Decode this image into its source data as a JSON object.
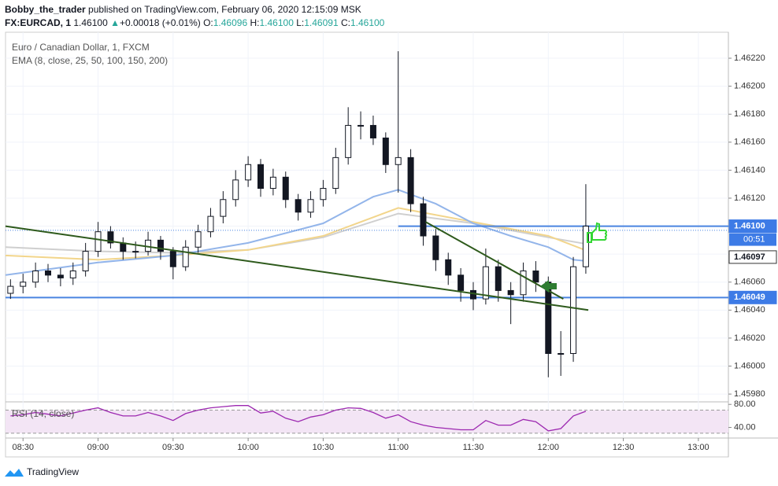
{
  "header": {
    "author": "Bobby_the_trader",
    "published": "published on TradingView.com, February 06, 2020 12:15:09 MSK",
    "symbol": "FX:EURCAD, 1",
    "last": "1.46100",
    "change": "+0.00018 (+0.01%)",
    "o_label": "O:",
    "o": "1.46096",
    "h_label": "H:",
    "h": "1.46100",
    "l_label": "L:",
    "l": "1.46091",
    "c_label": "C:",
    "c": "1.46100",
    "legend_title": "Euro / Canadian Dollar, 1, FXCM",
    "legend_ema": "EMA (8, close, 25, 50, 100, 150, 200)"
  },
  "footer": {
    "brand": "TradingView"
  },
  "chart_data": [
    {
      "type": "candlestick",
      "x": [
        "08:25",
        "08:30",
        "08:35",
        "08:40",
        "08:45",
        "08:50",
        "08:55",
        "09:00",
        "09:05",
        "09:10",
        "09:15",
        "09:20",
        "09:25",
        "09:30",
        "09:35",
        "09:40",
        "09:45",
        "09:50",
        "09:55",
        "10:00",
        "10:05",
        "10:10",
        "10:15",
        "10:20",
        "10:25",
        "10:30",
        "10:35",
        "10:40",
        "10:45",
        "10:50",
        "10:55",
        "11:00",
        "11:05",
        "11:10",
        "11:15",
        "11:20",
        "11:25",
        "11:30",
        "11:35",
        "11:40",
        "11:45",
        "11:50",
        "11:55",
        "12:00",
        "12:05",
        "12:10",
        "12:15"
      ],
      "open": [
        1.46052,
        1.46057,
        1.4606,
        1.46068,
        1.46065,
        1.46063,
        1.46068,
        1.46082,
        1.46096,
        1.46088,
        1.46082,
        1.46082,
        1.4609,
        1.46082,
        1.46071,
        1.46085,
        1.46096,
        1.46107,
        1.46119,
        1.46133,
        1.46144,
        1.46127,
        1.46135,
        1.46119,
        1.4611,
        1.46119,
        1.46127,
        1.46149,
        1.46172,
        1.46172,
        1.46163,
        1.46144,
        1.46149,
        1.46116,
        1.46093,
        1.46076,
        1.46065,
        1.46054,
        1.46048,
        1.46071,
        1.46054,
        1.46051,
        1.46068,
        1.4606,
        1.46009,
        1.46009,
        1.46071
      ],
      "high": [
        1.46062,
        1.46066,
        1.46074,
        1.46073,
        1.4607,
        1.46074,
        1.46088,
        1.46103,
        1.461,
        1.46092,
        1.46089,
        1.46096,
        1.46093,
        1.46085,
        1.4609,
        1.46101,
        1.46113,
        1.46125,
        1.4614,
        1.4615,
        1.46148,
        1.46141,
        1.46139,
        1.46123,
        1.46125,
        1.46133,
        1.46156,
        1.46185,
        1.46182,
        1.46179,
        1.46167,
        1.46225,
        1.46155,
        1.46121,
        1.46098,
        1.46081,
        1.4607,
        1.4606,
        1.46084,
        1.46076,
        1.4606,
        1.46074,
        1.46075,
        1.46064,
        1.46025,
        1.46078,
        1.4613
      ],
      "low": [
        1.46048,
        1.46052,
        1.46056,
        1.4606,
        1.46057,
        1.46058,
        1.46064,
        1.46078,
        1.46084,
        1.46076,
        1.46077,
        1.46079,
        1.46076,
        1.46062,
        1.46068,
        1.46081,
        1.46092,
        1.46102,
        1.46114,
        1.46128,
        1.46121,
        1.46122,
        1.46113,
        1.46104,
        1.46106,
        1.46114,
        1.46123,
        1.46144,
        1.46162,
        1.46158,
        1.46138,
        1.46124,
        1.4611,
        1.46086,
        1.46068,
        1.46058,
        1.46046,
        1.4604,
        1.46044,
        1.46046,
        1.4603,
        1.46046,
        1.46053,
        1.45992,
        1.45993,
        1.46003,
        1.46066
      ],
      "close": [
        1.46057,
        1.4606,
        1.46068,
        1.46065,
        1.46063,
        1.46068,
        1.46082,
        1.46096,
        1.46088,
        1.46082,
        1.46082,
        1.4609,
        1.46082,
        1.46071,
        1.46085,
        1.46096,
        1.46107,
        1.46119,
        1.46133,
        1.46144,
        1.46127,
        1.46135,
        1.46119,
        1.4611,
        1.46119,
        1.46127,
        1.46149,
        1.46172,
        1.46172,
        1.46163,
        1.46144,
        1.46149,
        1.46116,
        1.46093,
        1.46076,
        1.46065,
        1.46054,
        1.46048,
        1.46071,
        1.46054,
        1.46051,
        1.46068,
        1.4606,
        1.46009,
        1.46009,
        1.46071,
        1.461
      ],
      "up_color": "#ffffff",
      "down_color": "#131722",
      "wick_color": "#131722",
      "ema": [
        {
          "color": "#cfcfcf",
          "x": [
            "08:23",
            "09:00",
            "09:30",
            "10:00",
            "10:30",
            "11:00",
            "11:30",
            "12:00",
            "12:16"
          ],
          "values": [
            1.46085,
            1.46082,
            1.46081,
            1.46083,
            1.46092,
            1.46109,
            1.46102,
            1.46092,
            1.46087
          ]
        },
        {
          "color": "#f2d58b",
          "x": [
            "08:23",
            "09:00",
            "09:30",
            "10:00",
            "10:30",
            "11:00",
            "11:30",
            "12:00",
            "12:16"
          ],
          "values": [
            1.46079,
            1.46076,
            1.46079,
            1.46083,
            1.46093,
            1.46113,
            1.46103,
            1.46093,
            1.46082
          ]
        },
        {
          "color": "#93b5ea",
          "x": [
            "08:23",
            "09:00",
            "09:30",
            "10:00",
            "10:30",
            "10:50",
            "11:00",
            "11:15",
            "11:30",
            "11:45",
            "12:00",
            "12:10",
            "12:16"
          ],
          "values": [
            1.46065,
            1.46074,
            1.46079,
            1.46088,
            1.46102,
            1.46121,
            1.46126,
            1.46116,
            1.46102,
            1.46093,
            1.46085,
            1.46076,
            1.46075
          ]
        }
      ],
      "trendlines": [
        {
          "color": "#2e5a1c",
          "x": [
            "08:23",
            "12:16"
          ],
          "values": [
            1.461,
            1.4604
          ]
        },
        {
          "color": "#2e5a1c",
          "x": [
            "11:11",
            "12:06"
          ],
          "values": [
            1.46103,
            1.46048
          ]
        }
      ],
      "hlines": [
        {
          "value": 1.461,
          "x_start": "11:00",
          "color": "#4a85e0"
        },
        {
          "value": 1.46049,
          "x_start": "08:23",
          "color": "#4a85e0"
        }
      ],
      "price_line": {
        "value": 1.46097,
        "color": "#4a85e0"
      },
      "price_labels": [
        {
          "value": 1.461,
          "label": "1.46100",
          "bg": "#3d7be6",
          "fg": "#ffffff"
        },
        {
          "value": 1.46097,
          "label": "1.46097",
          "bg": "#ffffff",
          "fg": "#131722"
        },
        {
          "value": 1.46049,
          "label": "1.46049",
          "bg": "#3d7be6",
          "fg": "#ffffff"
        }
      ],
      "countdown": "00:51",
      "xlim": [
        "08:23",
        "13:12"
      ],
      "xticks": [
        "08:30",
        "09:00",
        "09:30",
        "10:00",
        "10:30",
        "11:00",
        "11:30",
        "12:00",
        "12:30",
        "13:00"
      ],
      "ylim": [
        1.45975,
        1.46238
      ],
      "yticks": [
        {
          "value": 1.4598,
          "label": "1.45980"
        },
        {
          "value": 1.46,
          "label": "1.46000"
        },
        {
          "value": 1.4602,
          "label": "1.46020"
        },
        {
          "value": 1.4604,
          "label": "1.46040"
        },
        {
          "value": 1.4606,
          "label": "1.46060"
        },
        {
          "value": 1.4608,
          "label": "1.46080"
        },
        {
          "value": 1.461,
          "label": "1.46100"
        },
        {
          "value": 1.4612,
          "label": "1.46120"
        },
        {
          "value": 1.4614,
          "label": "1.46140"
        },
        {
          "value": 1.4616,
          "label": "1.46160"
        },
        {
          "value": 1.4618,
          "label": "1.46180"
        },
        {
          "value": 1.462,
          "label": "1.46200"
        },
        {
          "value": 1.4622,
          "label": "1.46220"
        }
      ],
      "grid": true
    },
    {
      "type": "line",
      "title": "RSI (14, close)",
      "color": "#9c27b0",
      "values": [
        60,
        62,
        66,
        63,
        60,
        65,
        70,
        74,
        66,
        60,
        60,
        66,
        60,
        52,
        64,
        70,
        74,
        76,
        78,
        78,
        65,
        68,
        56,
        50,
        58,
        62,
        70,
        74,
        73,
        66,
        56,
        62,
        50,
        44,
        40,
        38,
        36,
        36,
        52,
        44,
        44,
        54,
        50,
        34,
        38,
        60,
        68
      ],
      "bands": [
        70,
        30
      ],
      "band_fill": "#f3e5f5",
      "ylim": [
        23,
        83
      ],
      "yticks": [
        {
          "value": 80,
          "label": "80.00"
        },
        {
          "value": 40,
          "label": "40.00"
        }
      ]
    }
  ]
}
